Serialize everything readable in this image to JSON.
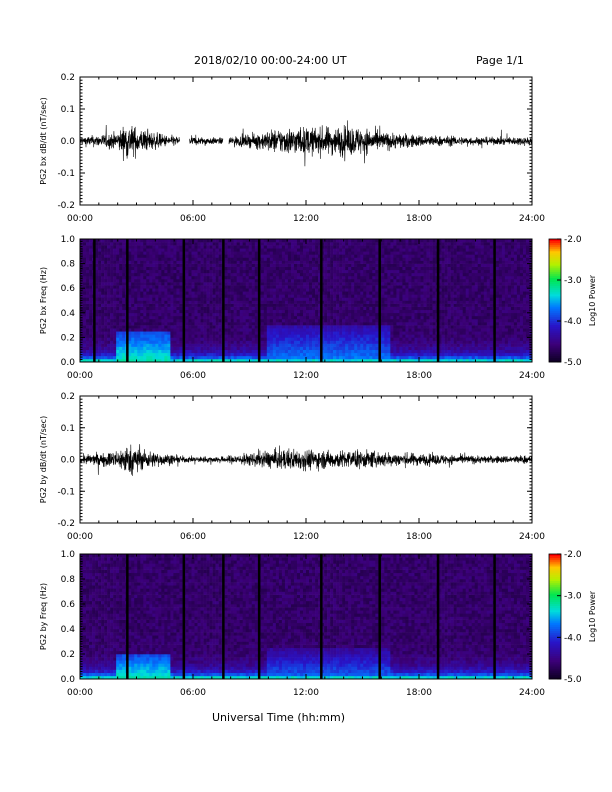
{
  "header": {
    "title": "2018/02/10  00:00-24:00 UT",
    "page": "Page 1/1"
  },
  "xlabel": "Universal Time (hh:mm)",
  "chart_data": [
    {
      "type": "line",
      "ylabel": "PG2 bx dB/dt (nT/sec)",
      "xlim": [
        0,
        24
      ],
      "ylim": [
        -0.2,
        0.2
      ],
      "xticks": [
        "00:00",
        "06:00",
        "12:00",
        "18:00",
        "24:00"
      ],
      "yticks": [
        "-0.2",
        "-0.1",
        "0.0",
        "0.1",
        "0.2"
      ],
      "gaps": [
        [
          5.3,
          5.8
        ],
        [
          7.6,
          7.9
        ]
      ],
      "envelope_x": [
        0,
        1,
        2,
        2.5,
        2.8,
        3.5,
        4.5,
        5.3,
        5.8,
        7.6,
        8,
        9,
        10,
        11,
        12,
        13,
        14,
        15,
        16,
        18,
        20,
        22,
        24
      ],
      "envelope_amplitude": [
        0.015,
        0.02,
        0.03,
        0.06,
        0.05,
        0.035,
        0.02,
        0.015,
        0.015,
        0.01,
        0.015,
        0.02,
        0.035,
        0.045,
        0.045,
        0.045,
        0.05,
        0.045,
        0.03,
        0.02,
        0.015,
        0.012,
        0.015
      ]
    },
    {
      "type": "heatmap",
      "ylabel": "PG2 bx Freq (Hz)",
      "xlim": [
        0,
        24
      ],
      "ylim": [
        0,
        1.0
      ],
      "xticks": [
        "00:00",
        "06:00",
        "12:00",
        "18:00",
        "24:00"
      ],
      "yticks": [
        "0.0",
        "0.2",
        "0.4",
        "0.6",
        "0.8",
        "1.0"
      ],
      "colorbar": {
        "label": "Log10 Power",
        "ticks": [
          "-2.0",
          "-3.0",
          "-4.0",
          "-5.0"
        ],
        "range": [
          -5.0,
          -2.0
        ]
      },
      "data_gaps": [
        0.75,
        2.5,
        5.5,
        7.6,
        9.5,
        12.8,
        15.9,
        19.0,
        22.0
      ],
      "enhancement": [
        {
          "t0": 2.0,
          "t1": 4.8,
          "fmax": 0.25,
          "level": -3.2
        },
        {
          "t0": 10.0,
          "t1": 16.5,
          "fmax": 0.3,
          "level": -3.6
        }
      ]
    },
    {
      "type": "line",
      "ylabel": "PG2 by dB/dt (nT/sec)",
      "xlim": [
        0,
        24
      ],
      "ylim": [
        -0.2,
        0.2
      ],
      "xticks": [
        "00:00",
        "06:00",
        "12:00",
        "18:00",
        "24:00"
      ],
      "yticks": [
        "-0.2",
        "-0.1",
        "0.0",
        "0.1",
        "0.2"
      ],
      "gaps": [],
      "envelope_x": [
        0,
        1,
        2,
        2.5,
        2.8,
        3.5,
        4.5,
        5.3,
        5.8,
        7.6,
        8,
        9,
        10,
        11,
        12,
        13,
        14,
        15,
        16,
        18,
        20,
        22,
        24
      ],
      "envelope_amplitude": [
        0.015,
        0.02,
        0.03,
        0.05,
        0.045,
        0.03,
        0.02,
        0.012,
        0.01,
        0.01,
        0.015,
        0.02,
        0.03,
        0.035,
        0.035,
        0.03,
        0.03,
        0.03,
        0.025,
        0.02,
        0.015,
        0.012,
        0.015
      ]
    },
    {
      "type": "heatmap",
      "ylabel": "PG2 by Freq (Hz)",
      "xlim": [
        0,
        24
      ],
      "ylim": [
        0,
        1.0
      ],
      "xticks": [
        "00:00",
        "06:00",
        "12:00",
        "18:00",
        "24:00"
      ],
      "yticks": [
        "0.0",
        "0.2",
        "0.4",
        "0.6",
        "0.8",
        "1.0"
      ],
      "colorbar": {
        "label": "Log10 Power",
        "ticks": [
          "-2.0",
          "-3.0",
          "-4.0",
          "-5.0"
        ],
        "range": [
          -5.0,
          -2.0
        ]
      },
      "data_gaps": [
        2.5,
        5.5,
        7.6,
        9.5,
        12.8,
        15.9,
        19.0,
        22.0
      ],
      "enhancement": [
        {
          "t0": 2.0,
          "t1": 4.8,
          "fmax": 0.2,
          "level": -3.2
        },
        {
          "t0": 10.0,
          "t1": 16.5,
          "fmax": 0.25,
          "level": -3.7
        }
      ]
    }
  ]
}
